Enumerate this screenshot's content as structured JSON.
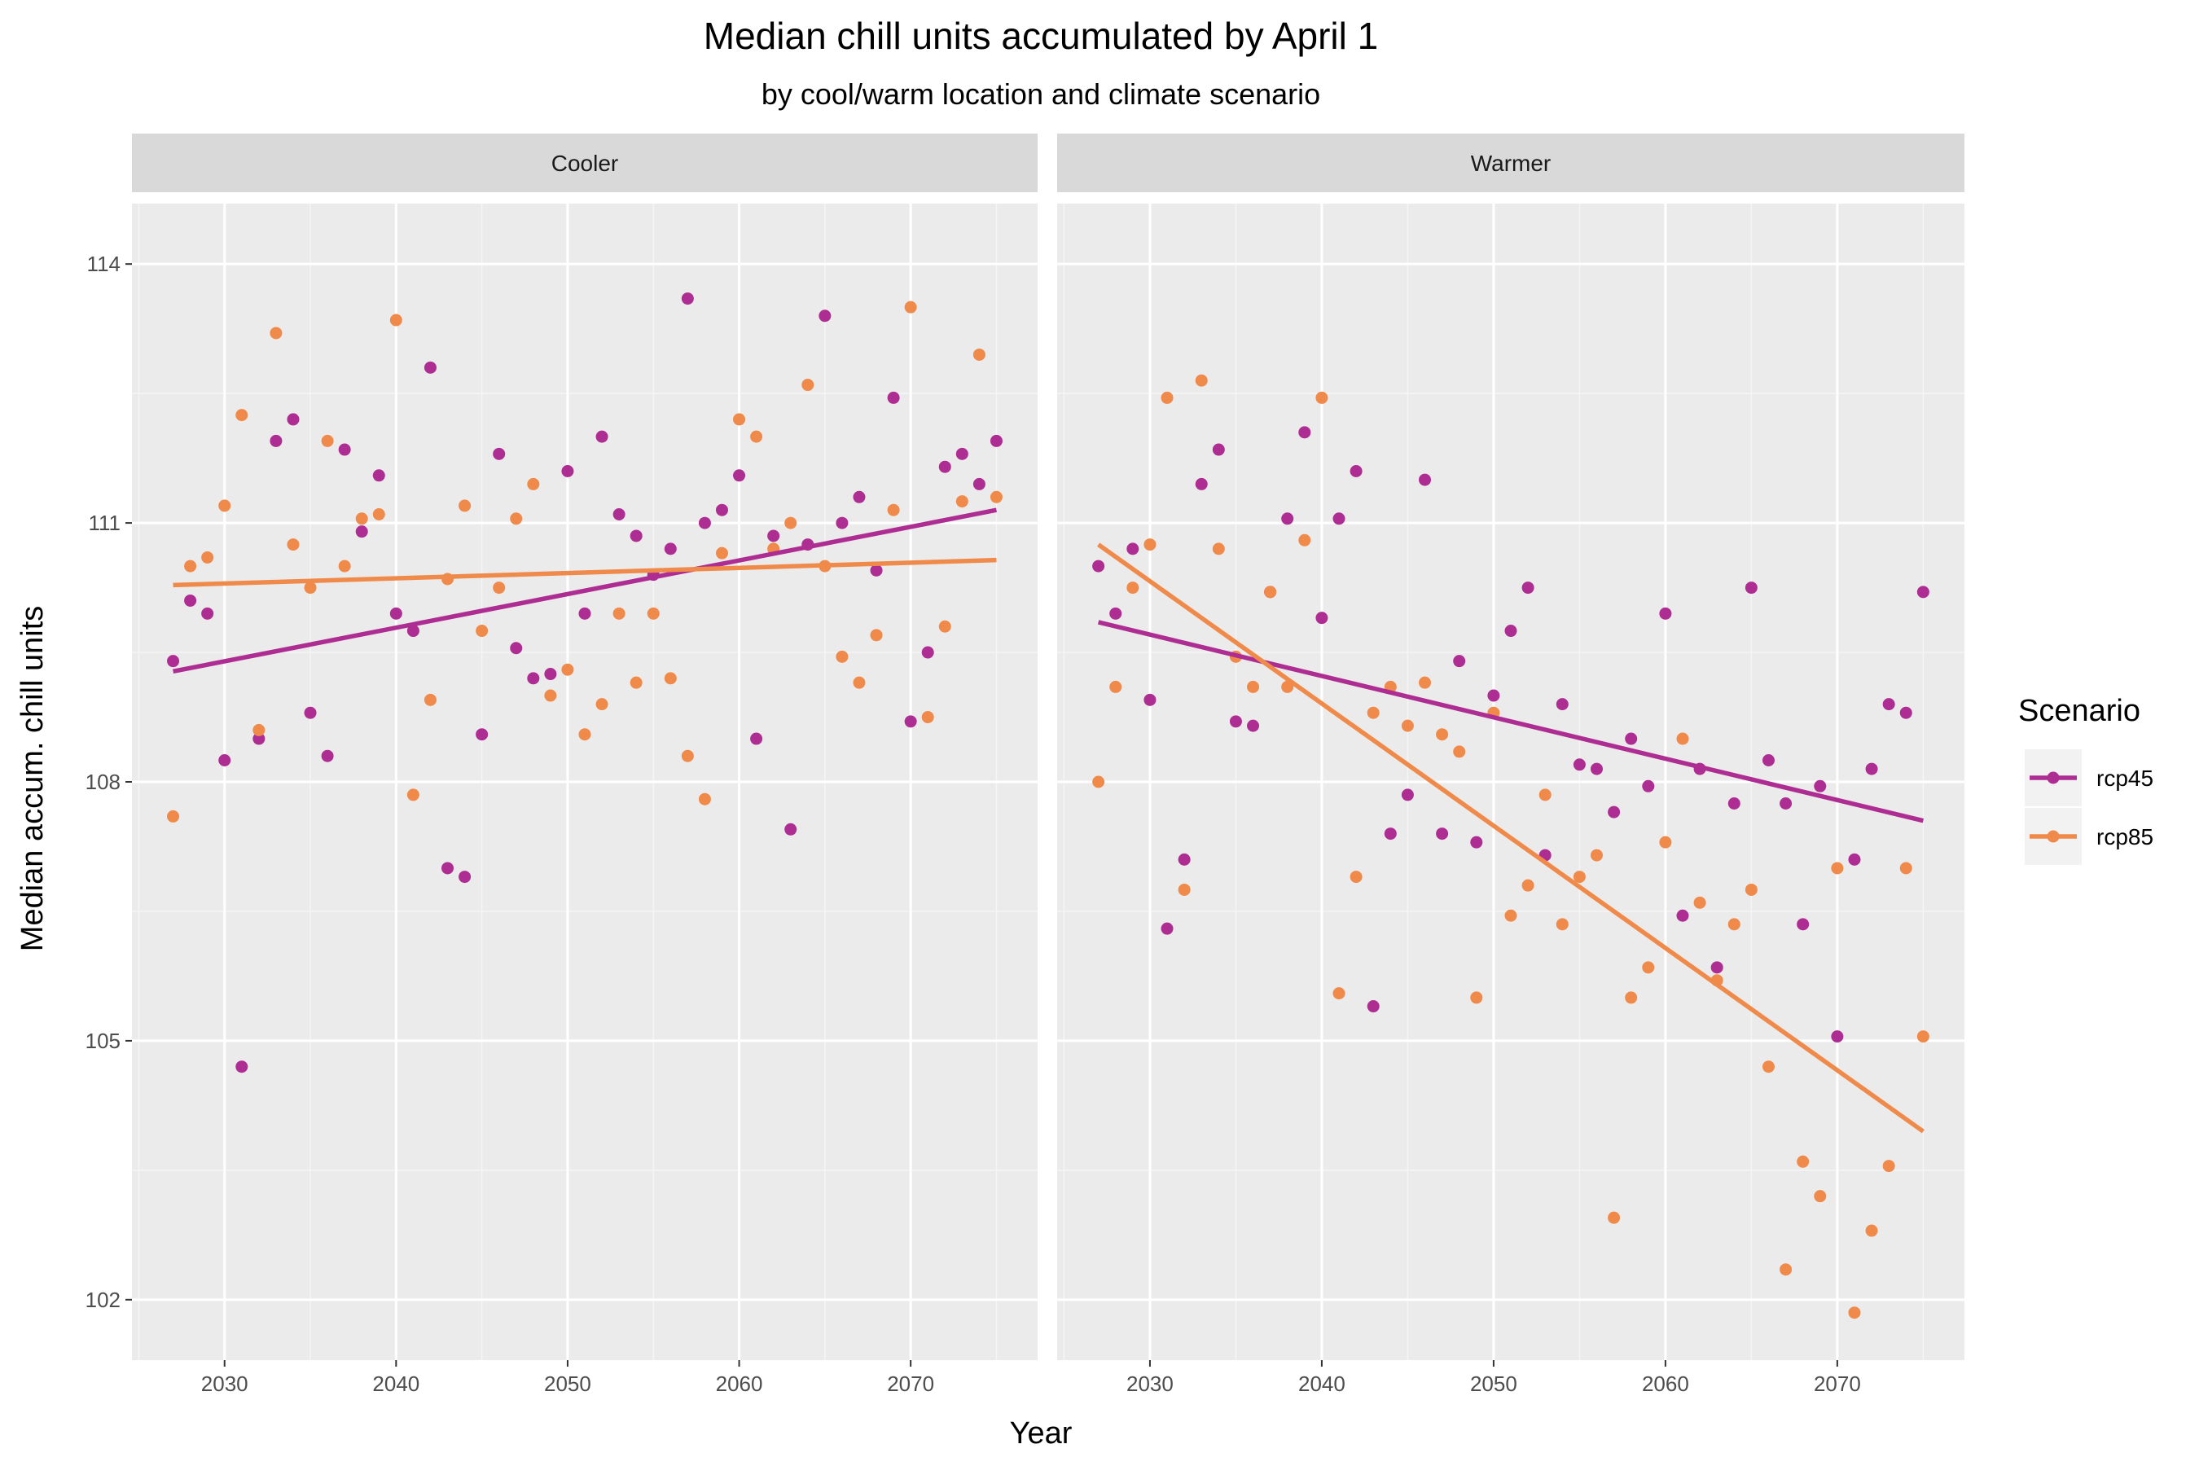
{
  "chart_data": {
    "type": "scatter",
    "title": "Median chill units accumulated by April 1",
    "subtitle": "by cool/warm location and climate scenario",
    "xlabel": "Year",
    "ylabel": "Median accum. chill units",
    "xlim": [
      2024.6,
      2077.4
    ],
    "ylim": [
      101.3,
      114.7
    ],
    "x_ticks": [
      2030,
      2040,
      2050,
      2060,
      2070
    ],
    "x_tick_labels": [
      "2030",
      "2040",
      "2050",
      "2060",
      "2070"
    ],
    "y_ticks": [
      102,
      105,
      108,
      111,
      114
    ],
    "y_tick_labels": [
      "102",
      "105",
      "108",
      "111",
      "114"
    ],
    "grid": true,
    "legend": {
      "title": "Scenario",
      "position": "right",
      "entries": [
        {
          "name": "rcp45",
          "color": "#AE2D92"
        },
        {
          "name": "rcp85",
          "color": "#F08A4B"
        }
      ]
    },
    "facets": [
      {
        "label": "Cooler",
        "series": [
          {
            "name": "rcp45",
            "color": "#AE2D92",
            "x": [
              2027,
              2028,
              2029,
              2030,
              2031,
              2032,
              2033,
              2034,
              2035,
              2036,
              2037,
              2038,
              2039,
              2040,
              2041,
              2042,
              2043,
              2044,
              2045,
              2046,
              2047,
              2048,
              2049,
              2050,
              2051,
              2052,
              2053,
              2054,
              2055,
              2056,
              2057,
              2058,
              2059,
              2060,
              2061,
              2062,
              2063,
              2064,
              2065,
              2066,
              2067,
              2068,
              2069,
              2070,
              2071,
              2072,
              2073,
              2074,
              2075
            ],
            "y": [
              109.4,
              110.1,
              109.95,
              108.25,
              104.7,
              108.5,
              111.95,
              112.2,
              108.8,
              108.3,
              111.85,
              110.9,
              111.55,
              109.95,
              109.75,
              112.8,
              107.0,
              106.9,
              108.55,
              111.8,
              109.55,
              109.2,
              109.25,
              111.6,
              109.95,
              112.0,
              111.1,
              110.85,
              110.4,
              110.7,
              113.6,
              111.0,
              111.15,
              111.55,
              108.5,
              110.85,
              107.45,
              110.75,
              113.4,
              111.0,
              111.3,
              110.45,
              112.45,
              108.7,
              109.5,
              111.65,
              111.8,
              111.45,
              111.95
            ]
          },
          {
            "name": "rcp85",
            "color": "#F08A4B",
            "x": [
              2027,
              2028,
              2029,
              2030,
              2031,
              2032,
              2033,
              2034,
              2035,
              2036,
              2037,
              2038,
              2039,
              2040,
              2041,
              2042,
              2043,
              2044,
              2045,
              2046,
              2047,
              2048,
              2049,
              2050,
              2051,
              2052,
              2053,
              2054,
              2055,
              2056,
              2057,
              2058,
              2059,
              2060,
              2061,
              2062,
              2063,
              2064,
              2065,
              2066,
              2067,
              2068,
              2069,
              2070,
              2071,
              2072,
              2073,
              2074,
              2075
            ],
            "y": [
              107.6,
              110.5,
              110.6,
              111.2,
              112.25,
              108.6,
              113.2,
              110.75,
              110.25,
              111.95,
              110.5,
              111.05,
              111.1,
              113.35,
              107.85,
              108.95,
              110.35,
              111.2,
              109.75,
              110.25,
              111.05,
              111.45,
              109.0,
              109.3,
              108.55,
              108.9,
              109.95,
              109.15,
              109.95,
              109.2,
              108.3,
              107.8,
              110.65,
              112.2,
              112.0,
              110.7,
              111.0,
              112.6,
              110.5,
              109.45,
              109.15,
              109.7,
              111.15,
              113.5,
              108.75,
              109.8,
              111.25,
              112.95,
              111.3
            ]
          }
        ],
        "trend_lines": [
          {
            "name": "rcp45",
            "x": [
              2027,
              2075
            ],
            "y": [
              109.28,
              111.15
            ]
          },
          {
            "name": "rcp85",
            "x": [
              2027,
              2075
            ],
            "y": [
              110.28,
              110.57
            ]
          }
        ]
      },
      {
        "label": "Warmer",
        "series": [
          {
            "name": "rcp45",
            "color": "#AE2D92",
            "x": [
              2027,
              2028,
              2029,
              2030,
              2031,
              2032,
              2033,
              2034,
              2035,
              2036,
              2037,
              2038,
              2039,
              2040,
              2041,
              2042,
              2043,
              2044,
              2045,
              2046,
              2047,
              2048,
              2049,
              2050,
              2051,
              2052,
              2053,
              2054,
              2055,
              2056,
              2057,
              2058,
              2059,
              2060,
              2061,
              2062,
              2063,
              2064,
              2065,
              2066,
              2067,
              2068,
              2069,
              2070,
              2071,
              2072,
              2073,
              2074,
              2075
            ],
            "y": [
              110.5,
              109.95,
              110.7,
              108.95,
              106.3,
              107.1,
              111.45,
              111.85,
              108.7,
              108.65,
              110.2,
              111.05,
              112.05,
              109.9,
              111.05,
              111.6,
              105.4,
              107.4,
              107.85,
              111.5,
              107.4,
              109.4,
              107.3,
              109.0,
              109.75,
              110.25,
              107.15,
              108.9,
              108.2,
              108.15,
              107.65,
              108.5,
              107.95,
              109.95,
              106.45,
              108.15,
              105.85,
              107.75,
              110.25,
              108.25,
              107.75,
              106.35,
              107.95,
              105.05,
              107.1,
              108.15,
              108.9,
              108.8,
              110.2
            ]
          },
          {
            "name": "rcp85",
            "color": "#F08A4B",
            "x": [
              2027,
              2028,
              2029,
              2030,
              2031,
              2032,
              2033,
              2034,
              2035,
              2036,
              2037,
              2038,
              2039,
              2040,
              2041,
              2042,
              2043,
              2044,
              2045,
              2046,
              2047,
              2048,
              2049,
              2050,
              2051,
              2052,
              2053,
              2054,
              2055,
              2056,
              2057,
              2058,
              2059,
              2060,
              2061,
              2062,
              2063,
              2064,
              2065,
              2066,
              2067,
              2068,
              2069,
              2070,
              2071,
              2072,
              2073,
              2074,
              2075
            ],
            "y": [
              108.0,
              109.1,
              110.25,
              110.75,
              112.45,
              106.75,
              112.65,
              110.7,
              109.45,
              109.1,
              110.2,
              109.1,
              110.8,
              112.45,
              105.55,
              106.9,
              108.8,
              109.1,
              108.65,
              109.15,
              108.55,
              108.35,
              105.5,
              108.8,
              106.45,
              106.8,
              107.85,
              106.35,
              106.9,
              107.15,
              102.95,
              105.5,
              105.85,
              107.3,
              108.5,
              106.6,
              105.7,
              106.35,
              106.75,
              104.7,
              102.35,
              103.6,
              103.2,
              107.0,
              101.85,
              102.8,
              103.55,
              107.0,
              105.05
            ]
          }
        ],
        "trend_lines": [
          {
            "name": "rcp45",
            "x": [
              2027,
              2075
            ],
            "y": [
              109.85,
              107.55
            ]
          },
          {
            "name": "rcp85",
            "x": [
              2027,
              2075
            ],
            "y": [
              110.75,
              103.95
            ]
          }
        ]
      }
    ]
  }
}
